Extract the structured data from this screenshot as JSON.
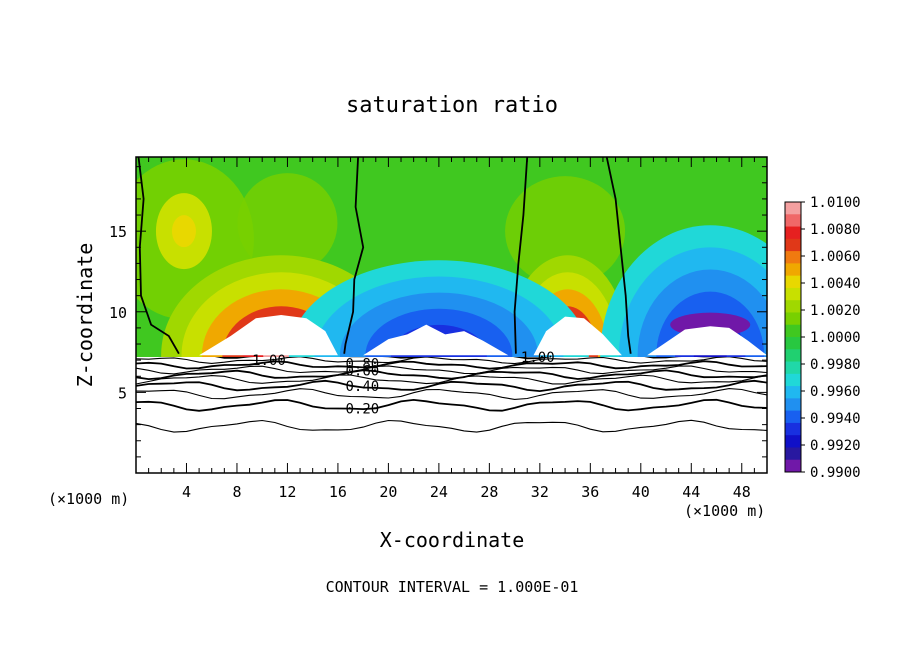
{
  "chart_data": {
    "type": "contour",
    "title": "saturation ratio",
    "xlabel": "X-coordinate",
    "ylabel": "Z-coordinate",
    "x_units": "(×1000 m)",
    "y_units": "(×1000 m)",
    "xlim": [
      0,
      50
    ],
    "ylim": [
      0,
      19.6
    ],
    "x_ticks": [
      4,
      8,
      12,
      16,
      20,
      24,
      28,
      32,
      36,
      40,
      44,
      48
    ],
    "y_ticks": [
      5,
      10,
      15
    ],
    "footer": "CONTOUR INTERVAL = 1.000E-01",
    "colorbar": {
      "labels": [
        "1.0100",
        "1.0080",
        "1.0060",
        "1.0040",
        "1.0020",
        "1.0000",
        "0.9980",
        "0.9960",
        "0.9940",
        "0.9920",
        "0.9900"
      ],
      "colors": [
        "#f4a0a0",
        "#f06868",
        "#e62020",
        "#e03818",
        "#f07a10",
        "#f0a800",
        "#e8d800",
        "#c8e000",
        "#a0d800",
        "#78d000",
        "#40c820",
        "#28c840",
        "#20d070",
        "#20d8a8",
        "#20d8d8",
        "#20b8f0",
        "#2090f0",
        "#1860f0",
        "#1830e0",
        "#1010c8",
        "#2818a0",
        "#7018a8"
      ]
    },
    "contour_labels": [
      {
        "text": "1.00",
        "x": 9.2,
        "z": 7.0
      },
      {
        "text": "0.80",
        "x": 16.6,
        "z": 6.8
      },
      {
        "text": "0.60",
        "x": 16.6,
        "z": 6.35
      },
      {
        "text": "0.40",
        "x": 16.6,
        "z": 5.4
      },
      {
        "text": "0.20",
        "x": 16.6,
        "z": 4.0
      },
      {
        "text": "1.00",
        "x": 30.5,
        "z": 7.2
      }
    ],
    "s_equals_1_contours": [
      [
        [
          0.2,
          19.6
        ],
        [
          0.6,
          17.0
        ],
        [
          0.3,
          14.0
        ],
        [
          0.4,
          11.0
        ],
        [
          1.2,
          9.2
        ],
        [
          2.6,
          8.5
        ],
        [
          3.4,
          7.4
        ]
      ],
      [
        [
          17.6,
          19.6
        ],
        [
          17.4,
          16.5
        ],
        [
          18.0,
          14.0
        ],
        [
          17.3,
          12.0
        ],
        [
          17.2,
          10.0
        ],
        [
          16.6,
          8.0
        ],
        [
          16.5,
          7.4
        ]
      ],
      [
        [
          31.0,
          19.6
        ],
        [
          30.7,
          16.0
        ],
        [
          30.3,
          13.0
        ],
        [
          30.0,
          10.0
        ],
        [
          30.1,
          7.4
        ]
      ],
      [
        [
          37.3,
          19.6
        ],
        [
          38.0,
          17.0
        ],
        [
          38.4,
          14.0
        ],
        [
          38.8,
          11.0
        ],
        [
          39.0,
          8.5
        ],
        [
          39.2,
          7.4
        ]
      ]
    ]
  }
}
